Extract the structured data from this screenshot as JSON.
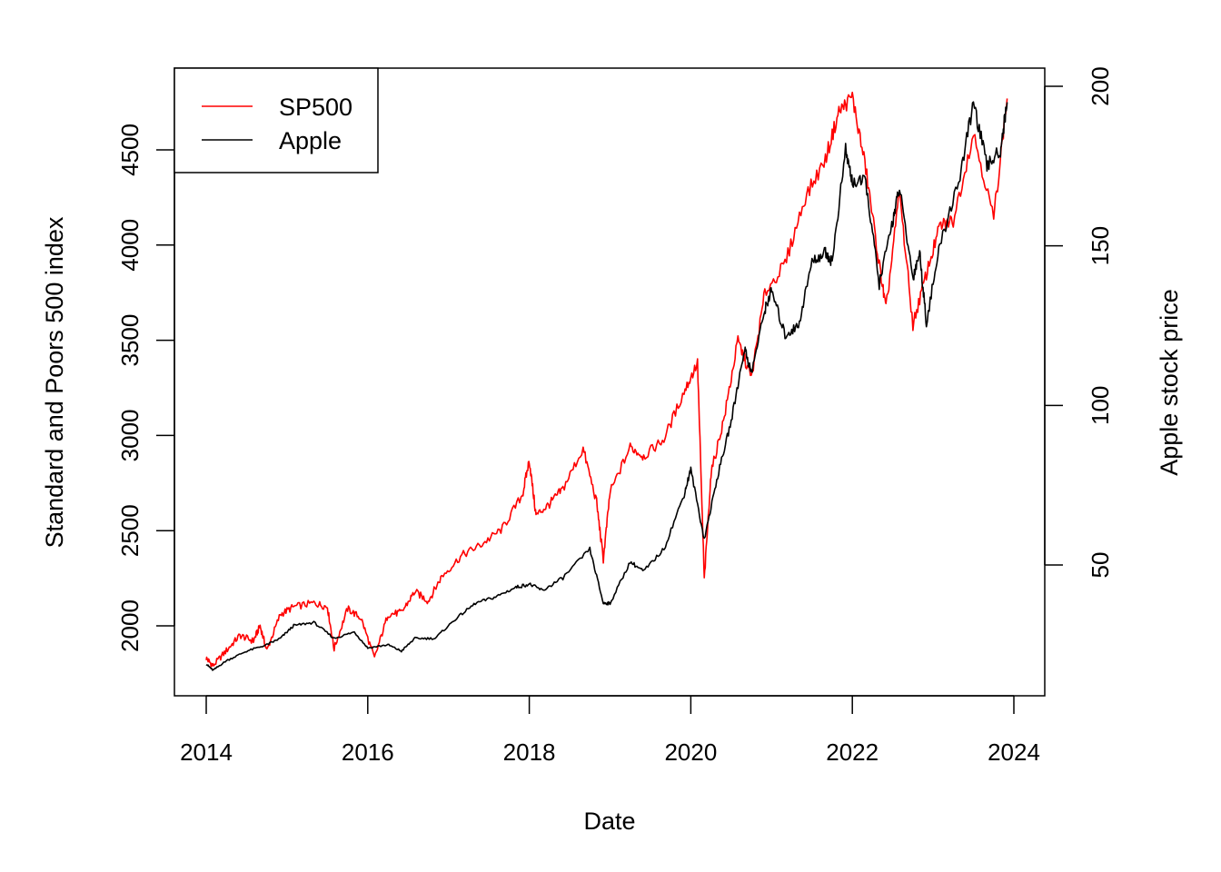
{
  "chart_data": {
    "type": "line",
    "title": "",
    "xlabel": "Date",
    "ylabel_left": "Standard and Poors 500 index",
    "ylabel_right": "Apple stock price",
    "x_ticks": [
      "2014",
      "2016",
      "2018",
      "2020",
      "2022",
      "2024"
    ],
    "y_left_ticks": [
      "2000",
      "2500",
      "3000",
      "3500",
      "4000",
      "4500"
    ],
    "y_right_ticks": [
      "50",
      "100",
      "150",
      "200"
    ],
    "x_range": [
      "2014-01",
      "2024-01"
    ],
    "y_left_range": [
      1830,
      4800
    ],
    "y_right_range": [
      17,
      198
    ],
    "legend": {
      "position": "top-left",
      "entries": [
        {
          "label": "SP500",
          "color": "#ff0000"
        },
        {
          "label": "Apple",
          "color": "#000000"
        }
      ]
    },
    "series": [
      {
        "name": "SP500",
        "axis": "left",
        "color": "#ff0000",
        "points": [
          [
            "2014-01",
            1830
          ],
          [
            "2014-02",
            1790
          ],
          [
            "2014-04",
            1870
          ],
          [
            "2014-06",
            1950
          ],
          [
            "2014-08",
            1920
          ],
          [
            "2014-09",
            2000
          ],
          [
            "2014-10",
            1870
          ],
          [
            "2014-12",
            2060
          ],
          [
            "2015-02",
            2100
          ],
          [
            "2015-05",
            2120
          ],
          [
            "2015-07",
            2100
          ],
          [
            "2015-08",
            1880
          ],
          [
            "2015-10",
            2090
          ],
          [
            "2015-12",
            2040
          ],
          [
            "2016-02",
            1830
          ],
          [
            "2016-04",
            2060
          ],
          [
            "2016-06",
            2070
          ],
          [
            "2016-08",
            2180
          ],
          [
            "2016-10",
            2130
          ],
          [
            "2016-12",
            2260
          ],
          [
            "2017-03",
            2370
          ],
          [
            "2017-06",
            2430
          ],
          [
            "2017-09",
            2510
          ],
          [
            "2017-12",
            2690
          ],
          [
            "2018-01",
            2870
          ],
          [
            "2018-02",
            2580
          ],
          [
            "2018-04",
            2640
          ],
          [
            "2018-06",
            2720
          ],
          [
            "2018-09",
            2930
          ],
          [
            "2018-11",
            2650
          ],
          [
            "2018-12",
            2350
          ],
          [
            "2019-01",
            2700
          ],
          [
            "2019-04",
            2940
          ],
          [
            "2019-06",
            2890
          ],
          [
            "2019-09",
            2980
          ],
          [
            "2019-12",
            3230
          ],
          [
            "2020-02",
            3380
          ],
          [
            "2020-03",
            2240
          ],
          [
            "2020-04",
            2800
          ],
          [
            "2020-06",
            3100
          ],
          [
            "2020-08",
            3500
          ],
          [
            "2020-10",
            3300
          ],
          [
            "2020-12",
            3750
          ],
          [
            "2021-03",
            3900
          ],
          [
            "2021-06",
            4250
          ],
          [
            "2021-09",
            4450
          ],
          [
            "2021-11",
            4700
          ],
          [
            "2022-01",
            4780
          ],
          [
            "2022-03",
            4400
          ],
          [
            "2022-05",
            3900
          ],
          [
            "2022-06",
            3660
          ],
          [
            "2022-08",
            4280
          ],
          [
            "2022-10",
            3580
          ],
          [
            "2022-12",
            3850
          ],
          [
            "2023-02",
            4100
          ],
          [
            "2023-04",
            4130
          ],
          [
            "2023-07",
            4590
          ],
          [
            "2023-10",
            4140
          ],
          [
            "2023-12",
            4770
          ]
        ]
      },
      {
        "name": "Apple",
        "axis": "right",
        "color": "#000000",
        "points": [
          [
            "2014-01",
            19
          ],
          [
            "2014-02",
            17
          ],
          [
            "2014-04",
            20
          ],
          [
            "2014-07",
            23
          ],
          [
            "2014-10",
            25
          ],
          [
            "2014-12",
            27
          ],
          [
            "2015-02",
            31
          ],
          [
            "2015-05",
            32
          ],
          [
            "2015-08",
            27
          ],
          [
            "2015-11",
            29
          ],
          [
            "2016-01",
            24
          ],
          [
            "2016-04",
            25
          ],
          [
            "2016-06",
            23
          ],
          [
            "2016-08",
            27
          ],
          [
            "2016-11",
            27
          ],
          [
            "2017-02",
            33
          ],
          [
            "2017-05",
            38
          ],
          [
            "2017-08",
            40
          ],
          [
            "2017-11",
            43
          ],
          [
            "2018-01",
            44
          ],
          [
            "2018-03",
            42
          ],
          [
            "2018-06",
            46
          ],
          [
            "2018-10",
            55
          ],
          [
            "2018-12",
            38
          ],
          [
            "2019-01",
            38
          ],
          [
            "2019-04",
            51
          ],
          [
            "2019-06",
            48
          ],
          [
            "2019-09",
            55
          ],
          [
            "2019-12",
            72
          ],
          [
            "2020-01",
            80
          ],
          [
            "2020-03",
            58
          ],
          [
            "2020-05",
            78
          ],
          [
            "2020-07",
            95
          ],
          [
            "2020-09",
            118
          ],
          [
            "2020-10",
            110
          ],
          [
            "2020-12",
            130
          ],
          [
            "2021-01",
            136
          ],
          [
            "2021-03",
            122
          ],
          [
            "2021-05",
            125
          ],
          [
            "2021-07",
            145
          ],
          [
            "2021-09",
            148
          ],
          [
            "2021-10",
            145
          ],
          [
            "2021-12",
            180
          ],
          [
            "2022-01",
            170
          ],
          [
            "2022-03",
            170
          ],
          [
            "2022-05",
            138
          ],
          [
            "2022-07",
            158
          ],
          [
            "2022-08",
            168
          ],
          [
            "2022-10",
            140
          ],
          [
            "2022-11",
            148
          ],
          [
            "2022-12",
            126
          ],
          [
            "2023-02",
            150
          ],
          [
            "2023-05",
            172
          ],
          [
            "2023-07",
            195
          ],
          [
            "2023-09",
            175
          ],
          [
            "2023-11",
            180
          ],
          [
            "2023-12",
            195
          ]
        ]
      }
    ]
  }
}
